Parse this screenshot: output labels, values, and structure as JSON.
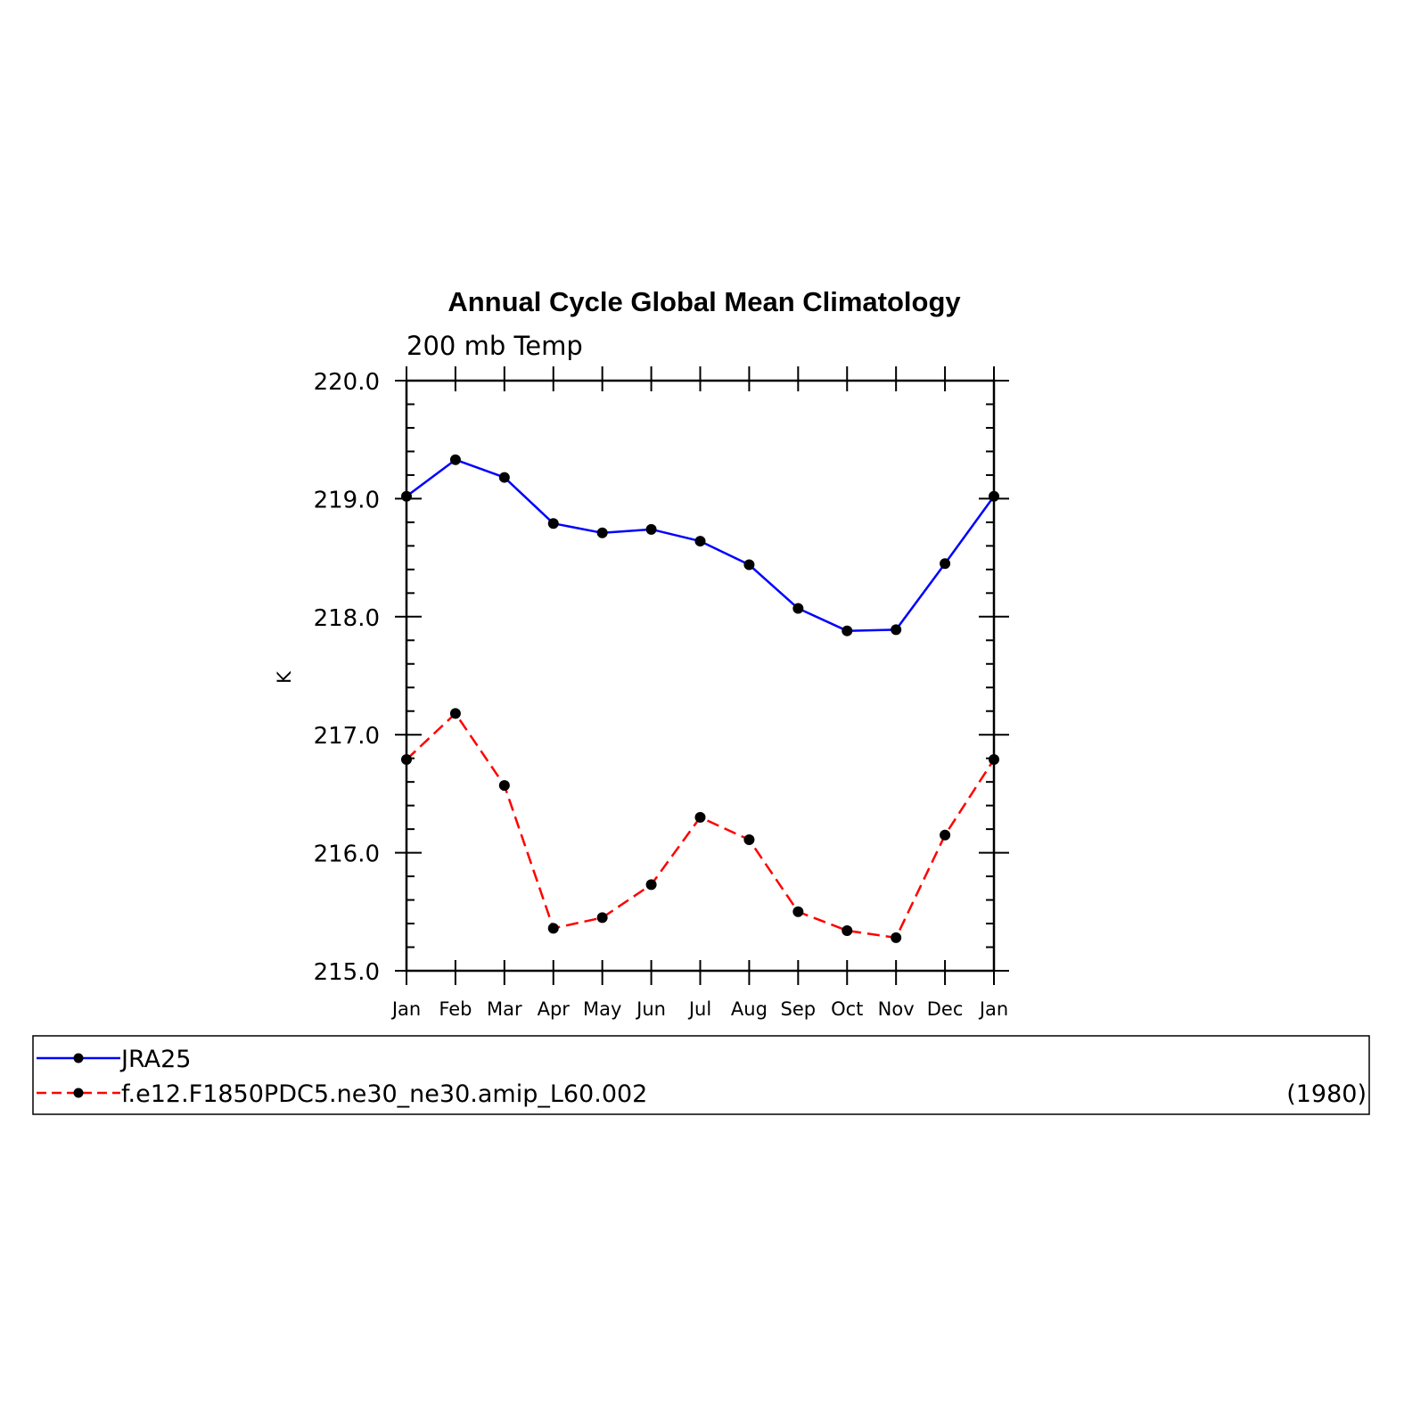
{
  "chart_data": {
    "type": "line",
    "title": "Annual Cycle Global Mean Climatology",
    "subtitle": "200 mb Temp",
    "xlabel": "",
    "ylabel": "K",
    "categories": [
      "Jan",
      "Feb",
      "Mar",
      "Apr",
      "May",
      "Jun",
      "Jul",
      "Aug",
      "Sep",
      "Oct",
      "Nov",
      "Dec",
      "Jan"
    ],
    "ylim": [
      215.0,
      220.0
    ],
    "yticks": [
      "215.0",
      "216.0",
      "217.0",
      "218.0",
      "219.0",
      "220.0"
    ],
    "grid": false,
    "legend_position": "bottom",
    "series": [
      {
        "name": "JRA25",
        "color": "#0000ff",
        "dash": "solid",
        "marker": "filled-circle",
        "values": [
          219.02,
          219.33,
          219.18,
          218.79,
          218.71,
          218.74,
          218.64,
          218.44,
          218.07,
          217.88,
          217.89,
          218.45,
          219.02
        ]
      },
      {
        "name": "f.e12.F1850PDC5.ne30_ne30.amip_L60.002",
        "color": "#ff0000",
        "dash": "dashed",
        "marker": "filled-circle",
        "values": [
          216.79,
          217.18,
          216.57,
          215.36,
          215.45,
          215.73,
          216.3,
          216.11,
          215.5,
          215.34,
          215.28,
          216.15,
          216.79
        ]
      }
    ],
    "legend_note": "(1980)"
  }
}
